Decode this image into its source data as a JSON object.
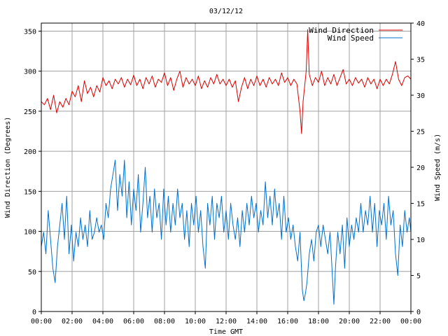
{
  "chart_data": {
    "type": "line",
    "title": "03/12/12",
    "xlabel": "Time GMT",
    "ylabel_left": "Wind Direction (Degrees)",
    "ylabel_right": "Wind Speed (m/s)",
    "x_ticks": [
      "00:00",
      "02:00",
      "04:00",
      "06:00",
      "08:00",
      "10:00",
      "12:00",
      "14:00",
      "16:00",
      "18:00",
      "20:00",
      "22:00",
      "00:00"
    ],
    "xlim_hours": [
      0,
      24
    ],
    "ylim_left": [
      0,
      360
    ],
    "ylim_right": [
      0,
      40
    ],
    "y_ticks_left": [
      0,
      50,
      100,
      150,
      200,
      250,
      300,
      350
    ],
    "y_ticks_right": [
      0,
      5,
      10,
      15,
      20,
      25,
      30,
      35,
      40
    ],
    "grid": true,
    "legend_position": "top-right",
    "series": [
      {
        "name": "Wind Direction",
        "axis": "left",
        "color": "#dd0000",
        "points": [
          [
            0.0,
            262
          ],
          [
            0.2,
            258
          ],
          [
            0.4,
            266
          ],
          [
            0.6,
            252
          ],
          [
            0.8,
            270
          ],
          [
            1.0,
            248
          ],
          [
            1.2,
            262
          ],
          [
            1.4,
            255
          ],
          [
            1.6,
            266
          ],
          [
            1.8,
            258
          ],
          [
            2.0,
            275
          ],
          [
            2.2,
            268
          ],
          [
            2.4,
            282
          ],
          [
            2.6,
            262
          ],
          [
            2.8,
            288
          ],
          [
            3.0,
            272
          ],
          [
            3.2,
            280
          ],
          [
            3.4,
            268
          ],
          [
            3.6,
            282
          ],
          [
            3.8,
            274
          ],
          [
            4.0,
            292
          ],
          [
            4.2,
            282
          ],
          [
            4.4,
            288
          ],
          [
            4.6,
            278
          ],
          [
            4.8,
            290
          ],
          [
            5.0,
            284
          ],
          [
            5.2,
            292
          ],
          [
            5.4,
            280
          ],
          [
            5.6,
            290
          ],
          [
            5.8,
            283
          ],
          [
            6.0,
            295
          ],
          [
            6.2,
            282
          ],
          [
            6.4,
            290
          ],
          [
            6.6,
            278
          ],
          [
            6.8,
            292
          ],
          [
            7.0,
            284
          ],
          [
            7.2,
            294
          ],
          [
            7.4,
            280
          ],
          [
            7.6,
            290
          ],
          [
            7.8,
            286
          ],
          [
            8.0,
            298
          ],
          [
            8.2,
            282
          ],
          [
            8.4,
            292
          ],
          [
            8.6,
            276
          ],
          [
            8.8,
            290
          ],
          [
            9.0,
            300
          ],
          [
            9.2,
            280
          ],
          [
            9.4,
            292
          ],
          [
            9.6,
            284
          ],
          [
            9.8,
            290
          ],
          [
            10.0,
            282
          ],
          [
            10.2,
            294
          ],
          [
            10.4,
            278
          ],
          [
            10.6,
            288
          ],
          [
            10.8,
            280
          ],
          [
            11.0,
            292
          ],
          [
            11.2,
            284
          ],
          [
            11.4,
            296
          ],
          [
            11.6,
            284
          ],
          [
            11.8,
            290
          ],
          [
            12.0,
            282
          ],
          [
            12.2,
            290
          ],
          [
            12.4,
            280
          ],
          [
            12.6,
            288
          ],
          [
            12.8,
            262
          ],
          [
            13.0,
            280
          ],
          [
            13.2,
            292
          ],
          [
            13.4,
            278
          ],
          [
            13.6,
            290
          ],
          [
            13.8,
            282
          ],
          [
            14.0,
            294
          ],
          [
            14.2,
            282
          ],
          [
            14.4,
            290
          ],
          [
            14.6,
            280
          ],
          [
            14.8,
            292
          ],
          [
            15.0,
            284
          ],
          [
            15.2,
            290
          ],
          [
            15.4,
            282
          ],
          [
            15.6,
            298
          ],
          [
            15.8,
            286
          ],
          [
            16.0,
            292
          ],
          [
            16.2,
            282
          ],
          [
            16.4,
            290
          ],
          [
            16.6,
            284
          ],
          [
            16.8,
            250
          ],
          [
            16.9,
            222
          ],
          [
            17.0,
            262
          ],
          [
            17.2,
            300
          ],
          [
            17.3,
            352
          ],
          [
            17.4,
            296
          ],
          [
            17.6,
            282
          ],
          [
            17.8,
            292
          ],
          [
            18.0,
            286
          ],
          [
            18.2,
            300
          ],
          [
            18.4,
            282
          ],
          [
            18.6,
            292
          ],
          [
            18.8,
            284
          ],
          [
            19.0,
            296
          ],
          [
            19.2,
            282
          ],
          [
            19.4,
            292
          ],
          [
            19.6,
            302
          ],
          [
            19.8,
            284
          ],
          [
            20.0,
            290
          ],
          [
            20.2,
            282
          ],
          [
            20.4,
            292
          ],
          [
            20.6,
            285
          ],
          [
            20.8,
            290
          ],
          [
            21.0,
            280
          ],
          [
            21.2,
            292
          ],
          [
            21.4,
            284
          ],
          [
            21.6,
            290
          ],
          [
            21.8,
            278
          ],
          [
            22.0,
            290
          ],
          [
            22.2,
            282
          ],
          [
            22.4,
            290
          ],
          [
            22.6,
            284
          ],
          [
            22.8,
            296
          ],
          [
            23.0,
            312
          ],
          [
            23.2,
            290
          ],
          [
            23.4,
            282
          ],
          [
            23.6,
            292
          ],
          [
            23.8,
            294
          ],
          [
            24.0,
            290
          ]
        ]
      },
      {
        "name": "Wind Speed",
        "axis": "right",
        "color": "#0070d0",
        "points": [
          [
            0.0,
            9
          ],
          [
            0.15,
            11
          ],
          [
            0.3,
            8
          ],
          [
            0.45,
            14
          ],
          [
            0.6,
            10
          ],
          [
            0.75,
            6
          ],
          [
            0.9,
            4
          ],
          [
            1.05,
            9
          ],
          [
            1.2,
            12
          ],
          [
            1.35,
            15
          ],
          [
            1.5,
            10
          ],
          [
            1.65,
            16
          ],
          [
            1.8,
            8
          ],
          [
            1.95,
            12
          ],
          [
            2.1,
            7
          ],
          [
            2.25,
            11
          ],
          [
            2.4,
            9
          ],
          [
            2.55,
            13
          ],
          [
            2.7,
            10
          ],
          [
            2.85,
            12
          ],
          [
            3.0,
            9
          ],
          [
            3.15,
            14
          ],
          [
            3.3,
            10
          ],
          [
            3.45,
            11
          ],
          [
            3.6,
            13
          ],
          [
            3.75,
            11
          ],
          [
            3.9,
            12
          ],
          [
            4.05,
            10
          ],
          [
            4.2,
            15
          ],
          [
            4.35,
            13
          ],
          [
            4.5,
            17
          ],
          [
            4.65,
            19
          ],
          [
            4.8,
            21
          ],
          [
            4.95,
            14
          ],
          [
            5.1,
            19
          ],
          [
            5.25,
            16
          ],
          [
            5.4,
            21
          ],
          [
            5.55,
            13
          ],
          [
            5.7,
            18
          ],
          [
            5.85,
            12
          ],
          [
            6.0,
            17
          ],
          [
            6.15,
            14
          ],
          [
            6.3,
            19
          ],
          [
            6.45,
            11
          ],
          [
            6.6,
            15
          ],
          [
            6.75,
            20
          ],
          [
            6.9,
            13
          ],
          [
            7.05,
            16
          ],
          [
            7.2,
            11
          ],
          [
            7.35,
            17
          ],
          [
            7.5,
            13
          ],
          [
            7.65,
            15
          ],
          [
            7.8,
            10
          ],
          [
            7.95,
            17
          ],
          [
            8.1,
            12
          ],
          [
            8.25,
            16
          ],
          [
            8.4,
            11
          ],
          [
            8.55,
            15
          ],
          [
            8.7,
            12
          ],
          [
            8.85,
            17
          ],
          [
            9.0,
            13
          ],
          [
            9.15,
            15
          ],
          [
            9.3,
            10
          ],
          [
            9.45,
            14
          ],
          [
            9.6,
            9
          ],
          [
            9.75,
            15
          ],
          [
            9.9,
            12
          ],
          [
            10.05,
            16
          ],
          [
            10.2,
            11
          ],
          [
            10.35,
            14
          ],
          [
            10.5,
            9
          ],
          [
            10.65,
            6
          ],
          [
            10.8,
            15
          ],
          [
            10.95,
            12
          ],
          [
            11.1,
            16
          ],
          [
            11.25,
            10
          ],
          [
            11.4,
            15
          ],
          [
            11.55,
            13
          ],
          [
            11.7,
            16
          ],
          [
            11.85,
            11
          ],
          [
            12.0,
            14
          ],
          [
            12.15,
            10
          ],
          [
            12.3,
            15
          ],
          [
            12.45,
            12
          ],
          [
            12.6,
            10
          ],
          [
            12.75,
            13
          ],
          [
            12.9,
            9
          ],
          [
            13.05,
            14
          ],
          [
            13.2,
            11
          ],
          [
            13.35,
            15
          ],
          [
            13.5,
            12
          ],
          [
            13.65,
            16
          ],
          [
            13.8,
            13
          ],
          [
            13.95,
            15
          ],
          [
            14.1,
            11
          ],
          [
            14.25,
            14
          ],
          [
            14.4,
            12
          ],
          [
            14.55,
            18
          ],
          [
            14.7,
            13
          ],
          [
            14.85,
            16
          ],
          [
            15.0,
            12
          ],
          [
            15.15,
            17
          ],
          [
            15.3,
            13
          ],
          [
            15.45,
            15
          ],
          [
            15.6,
            10
          ],
          [
            15.75,
            16
          ],
          [
            15.9,
            11
          ],
          [
            16.05,
            13
          ],
          [
            16.2,
            10
          ],
          [
            16.35,
            12
          ],
          [
            16.5,
            9
          ],
          [
            16.65,
            7
          ],
          [
            16.8,
            11
          ],
          [
            16.95,
            3
          ],
          [
            17.05,
            1.5
          ],
          [
            17.15,
            2.5
          ],
          [
            17.25,
            4
          ],
          [
            17.4,
            8
          ],
          [
            17.55,
            10
          ],
          [
            17.7,
            7
          ],
          [
            17.85,
            11
          ],
          [
            18.0,
            12
          ],
          [
            18.15,
            9
          ],
          [
            18.3,
            12
          ],
          [
            18.45,
            10
          ],
          [
            18.6,
            8
          ],
          [
            18.75,
            11
          ],
          [
            18.9,
            5
          ],
          [
            19.0,
            1
          ],
          [
            19.1,
            6
          ],
          [
            19.25,
            11
          ],
          [
            19.4,
            8
          ],
          [
            19.55,
            12
          ],
          [
            19.7,
            6
          ],
          [
            19.85,
            13
          ],
          [
            20.0,
            9
          ],
          [
            20.15,
            12
          ],
          [
            20.3,
            10
          ],
          [
            20.45,
            13
          ],
          [
            20.6,
            11
          ],
          [
            20.75,
            15
          ],
          [
            20.9,
            11
          ],
          [
            21.05,
            14
          ],
          [
            21.2,
            12
          ],
          [
            21.35,
            16
          ],
          [
            21.5,
            11
          ],
          [
            21.65,
            15
          ],
          [
            21.8,
            9
          ],
          [
            21.95,
            14
          ],
          [
            22.1,
            12
          ],
          [
            22.25,
            15
          ],
          [
            22.4,
            10
          ],
          [
            22.55,
            16
          ],
          [
            22.7,
            12
          ],
          [
            22.85,
            14
          ],
          [
            23.0,
            8
          ],
          [
            23.15,
            5
          ],
          [
            23.3,
            12
          ],
          [
            23.45,
            9
          ],
          [
            23.6,
            14
          ],
          [
            23.75,
            11
          ],
          [
            23.9,
            13
          ],
          [
            24.0,
            11
          ]
        ]
      }
    ]
  }
}
